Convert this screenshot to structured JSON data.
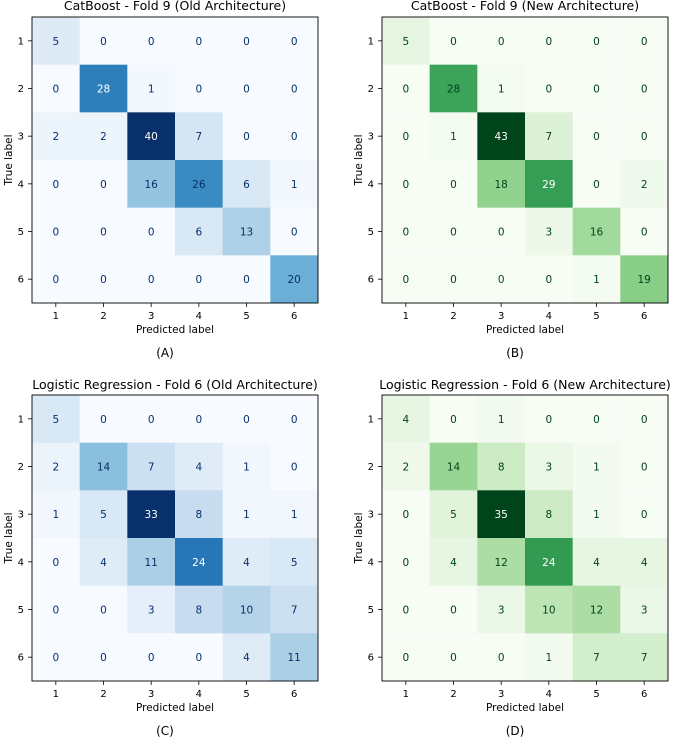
{
  "colors": {
    "blue_cmap": "Blues",
    "green_cmap": "Greens",
    "axis_color": "#000000"
  },
  "chart_data": [
    {
      "type": "heatmap",
      "title": "CatBoost - Fold 9 (Old Architecture)",
      "panel_label": "(A)",
      "xlabel": "Predicted label",
      "ylabel": "True label",
      "x_ticks": [
        "1",
        "2",
        "3",
        "4",
        "5",
        "6"
      ],
      "y_ticks": [
        "1",
        "2",
        "3",
        "4",
        "5",
        "6"
      ],
      "colormap": "Blues",
      "matrix": [
        [
          5,
          0,
          0,
          0,
          0,
          0
        ],
        [
          0,
          28,
          1,
          0,
          0,
          0
        ],
        [
          2,
          2,
          40,
          7,
          0,
          0
        ],
        [
          0,
          0,
          16,
          26,
          6,
          1
        ],
        [
          0,
          0,
          0,
          6,
          13,
          0
        ],
        [
          0,
          0,
          0,
          0,
          0,
          20
        ]
      ]
    },
    {
      "type": "heatmap",
      "title": "CatBoost - Fold 9 (New Architecture)",
      "panel_label": "(B)",
      "xlabel": "Predicted label",
      "ylabel": "True label",
      "x_ticks": [
        "1",
        "2",
        "3",
        "4",
        "5",
        "6"
      ],
      "y_ticks": [
        "1",
        "2",
        "3",
        "4",
        "5",
        "6"
      ],
      "colormap": "Greens",
      "matrix": [
        [
          5,
          0,
          0,
          0,
          0,
          0
        ],
        [
          0,
          28,
          1,
          0,
          0,
          0
        ],
        [
          0,
          1,
          43,
          7,
          0,
          0
        ],
        [
          0,
          0,
          18,
          29,
          0,
          2
        ],
        [
          0,
          0,
          0,
          3,
          16,
          0
        ],
        [
          0,
          0,
          0,
          0,
          1,
          19
        ]
      ]
    },
    {
      "type": "heatmap",
      "title": "Logistic Regression - Fold 6 (Old Architecture)",
      "panel_label": "(C)",
      "xlabel": "Predicted label",
      "ylabel": "True label",
      "x_ticks": [
        "1",
        "2",
        "3",
        "4",
        "5",
        "6"
      ],
      "y_ticks": [
        "1",
        "2",
        "3",
        "4",
        "5",
        "6"
      ],
      "colormap": "Blues",
      "matrix": [
        [
          5,
          0,
          0,
          0,
          0,
          0
        ],
        [
          2,
          14,
          7,
          4,
          1,
          0
        ],
        [
          1,
          5,
          33,
          8,
          1,
          1
        ],
        [
          0,
          4,
          11,
          24,
          4,
          5
        ],
        [
          0,
          0,
          3,
          8,
          10,
          7
        ],
        [
          0,
          0,
          0,
          0,
          4,
          11
        ]
      ]
    },
    {
      "type": "heatmap",
      "title": "Logistic Regression - Fold 6 (New Architecture)",
      "panel_label": "(D)",
      "xlabel": "Predicted label",
      "ylabel": "True label",
      "x_ticks": [
        "1",
        "2",
        "3",
        "4",
        "5",
        "6"
      ],
      "y_ticks": [
        "1",
        "2",
        "3",
        "4",
        "5",
        "6"
      ],
      "colormap": "Greens",
      "matrix": [
        [
          4,
          0,
          1,
          0,
          0,
          0
        ],
        [
          2,
          14,
          8,
          3,
          1,
          0
        ],
        [
          0,
          5,
          35,
          8,
          1,
          0
        ],
        [
          0,
          4,
          12,
          24,
          4,
          4
        ],
        [
          0,
          0,
          3,
          10,
          12,
          3
        ],
        [
          0,
          0,
          0,
          1,
          7,
          7
        ]
      ]
    }
  ]
}
